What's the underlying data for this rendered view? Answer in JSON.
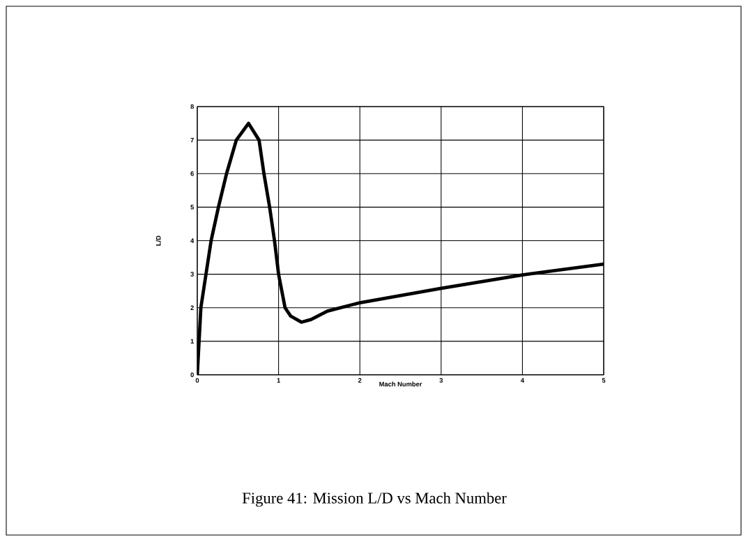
{
  "chart_data": {
    "type": "line",
    "xlabel": "Mach Number",
    "ylabel": "L/D",
    "annotations": [
      "Figure 41:  Mission L/D vs Mach Number"
    ],
    "series": [
      {
        "color": "#000000",
        "x": [
          0,
          0.044,
          0.17,
          0.26,
          0.36,
          0.48,
          0.63,
          0.76,
          0.82,
          0.89,
          0.95,
          1.0,
          1.08,
          1.15,
          1.28,
          1.4,
          1.6,
          2,
          3,
          4,
          5
        ],
        "values": [
          0,
          2,
          4,
          5,
          6,
          7,
          7.5,
          7,
          6,
          5,
          4,
          3,
          2,
          1.75,
          1.57,
          1.65,
          1.9,
          2.15,
          2.58,
          2.98,
          3.3
        ]
      }
    ],
    "xlim": [
      0,
      5
    ],
    "ylim": [
      0,
      8
    ],
    "xticks": [
      0,
      1,
      2,
      3,
      4,
      5
    ],
    "yticks": [
      0,
      1,
      2,
      3,
      4,
      5,
      6,
      7,
      8
    ],
    "grid": true,
    "marker": "none",
    "line_style": "solid"
  }
}
